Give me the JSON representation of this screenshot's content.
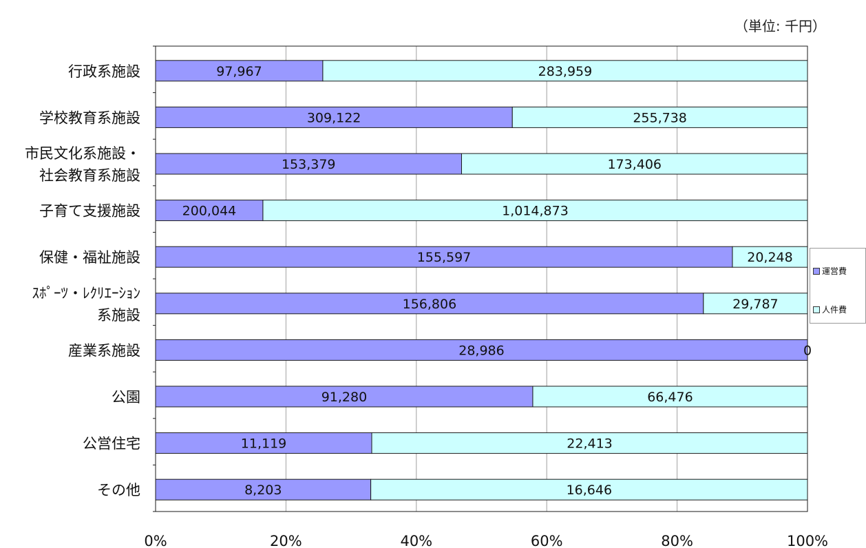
{
  "unit_label": "（単位: 千円）",
  "colors": {
    "operating": "#9999ff",
    "personnel": "#ccffff",
    "border": "#1a1a1a",
    "grid": "#a0a0a0"
  },
  "chart_data": {
    "type": "bar",
    "orientation": "horizontal",
    "stacked": "percent",
    "categories": [
      [
        "行政系施設"
      ],
      [
        "学校教育系施設"
      ],
      [
        "市民文化系施設・",
        "社会教育系施設"
      ],
      [
        "子育て支援施設"
      ],
      [
        "保健・福祉施設"
      ],
      [
        "ｽﾎﾟｰﾂ・ﾚｸﾘｴｰｼｮﾝ",
        "系施設"
      ],
      [
        "産業系施設"
      ],
      [
        "公園"
      ],
      [
        "公営住宅"
      ],
      [
        "その他"
      ]
    ],
    "series": [
      {
        "name": "運営費",
        "values": [
          97967,
          309122,
          153379,
          200044,
          155597,
          156806,
          28986,
          91280,
          11119,
          8203
        ],
        "labels": [
          "97,967",
          "309,122",
          "153,379",
          "200,044",
          "155,597",
          "156,806",
          "28,986",
          "91,280",
          "11,119",
          "8,203"
        ]
      },
      {
        "name": "人件費",
        "values": [
          283959,
          255738,
          173406,
          1014873,
          20248,
          29787,
          0,
          66476,
          22413,
          16646
        ],
        "labels": [
          "283,959",
          "255,738",
          "173,406",
          "1,014,873",
          "20,248",
          "29,787",
          "0",
          "66,476",
          "22,413",
          "16,646"
        ]
      }
    ],
    "x_ticks": [
      "0%",
      "20%",
      "40%",
      "60%",
      "80%",
      "100%"
    ],
    "xlim": [
      0,
      100
    ],
    "grid": true,
    "legend_position": "right"
  }
}
